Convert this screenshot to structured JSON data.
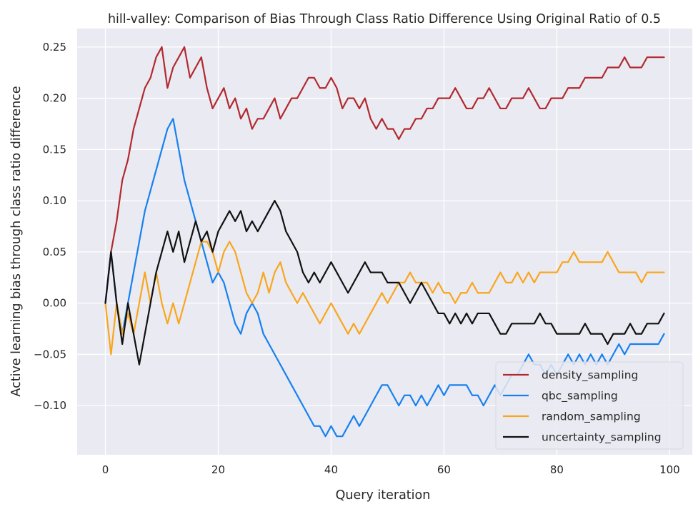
{
  "chart_data": {
    "type": "line",
    "title": "hill-valley: Comparison of Bias Through Class Ratio Difference Using Original Ratio of 0.5",
    "xlabel": "Query iteration",
    "ylabel": "Active learning bias through class ratio difference",
    "xlim": [
      -5,
      104
    ],
    "ylim": [
      -0.148,
      0.268
    ],
    "xticks": [
      0,
      20,
      40,
      60,
      80,
      100
    ],
    "yticks": [
      -0.1,
      -0.05,
      0.0,
      0.05,
      0.1,
      0.15,
      0.2,
      0.25
    ],
    "xtick_labels": [
      "0",
      "20",
      "40",
      "60",
      "80",
      "100"
    ],
    "ytick_labels": [
      "−0.10",
      "−0.05",
      "0.00",
      "0.05",
      "0.10",
      "0.15",
      "0.20",
      "0.25"
    ],
    "grid": true,
    "legend_position": "lower-right",
    "x": [
      0,
      1,
      2,
      3,
      4,
      5,
      6,
      7,
      8,
      9,
      10,
      11,
      12,
      13,
      14,
      15,
      16,
      17,
      18,
      19,
      20,
      21,
      22,
      23,
      24,
      25,
      26,
      27,
      28,
      29,
      30,
      31,
      32,
      33,
      34,
      35,
      36,
      37,
      38,
      39,
      40,
      41,
      42,
      43,
      44,
      45,
      46,
      47,
      48,
      49,
      50,
      51,
      52,
      53,
      54,
      55,
      56,
      57,
      58,
      59,
      60,
      61,
      62,
      63,
      64,
      65,
      66,
      67,
      68,
      69,
      70,
      71,
      72,
      73,
      74,
      75,
      76,
      77,
      78,
      79,
      80,
      81,
      82,
      83,
      84,
      85,
      86,
      87,
      88,
      89,
      90,
      91,
      92,
      93,
      94,
      95,
      96,
      97,
      98,
      99
    ],
    "series": [
      {
        "name": "density_sampling",
        "color": "#b2292e",
        "values": [
          0.0,
          0.05,
          0.08,
          0.12,
          0.14,
          0.17,
          0.19,
          0.21,
          0.22,
          0.24,
          0.25,
          0.21,
          0.23,
          0.24,
          0.25,
          0.22,
          0.23,
          0.24,
          0.21,
          0.19,
          0.2,
          0.21,
          0.19,
          0.2,
          0.18,
          0.19,
          0.17,
          0.18,
          0.18,
          0.19,
          0.2,
          0.18,
          0.19,
          0.2,
          0.2,
          0.21,
          0.22,
          0.22,
          0.21,
          0.21,
          0.22,
          0.21,
          0.19,
          0.2,
          0.2,
          0.19,
          0.2,
          0.18,
          0.17,
          0.18,
          0.17,
          0.17,
          0.16,
          0.17,
          0.17,
          0.18,
          0.18,
          0.19,
          0.19,
          0.2,
          0.2,
          0.2,
          0.21,
          0.2,
          0.19,
          0.19,
          0.2,
          0.2,
          0.21,
          0.2,
          0.19,
          0.19,
          0.2,
          0.2,
          0.2,
          0.21,
          0.2,
          0.19,
          0.19,
          0.2,
          0.2,
          0.2,
          0.21,
          0.21,
          0.21,
          0.22,
          0.22,
          0.22,
          0.22,
          0.23,
          0.23,
          0.23,
          0.24,
          0.23,
          0.23,
          0.23,
          0.24,
          0.24,
          0.24,
          0.24
        ]
      },
      {
        "name": "qbc_sampling",
        "color": "#1681f0",
        "values": [
          0.0,
          0.05,
          0.0,
          -0.03,
          0.0,
          0.03,
          0.06,
          0.09,
          0.11,
          0.13,
          0.15,
          0.17,
          0.18,
          0.15,
          0.12,
          0.1,
          0.08,
          0.06,
          0.04,
          0.02,
          0.03,
          0.02,
          0.0,
          -0.02,
          -0.03,
          -0.01,
          0.0,
          -0.01,
          -0.03,
          -0.04,
          -0.05,
          -0.06,
          -0.07,
          -0.08,
          -0.09,
          -0.1,
          -0.11,
          -0.12,
          -0.12,
          -0.13,
          -0.12,
          -0.13,
          -0.13,
          -0.12,
          -0.11,
          -0.12,
          -0.11,
          -0.1,
          -0.09,
          -0.08,
          -0.08,
          -0.09,
          -0.1,
          -0.09,
          -0.09,
          -0.1,
          -0.09,
          -0.1,
          -0.09,
          -0.08,
          -0.09,
          -0.08,
          -0.08,
          -0.08,
          -0.08,
          -0.09,
          -0.09,
          -0.1,
          -0.09,
          -0.08,
          -0.09,
          -0.08,
          -0.07,
          -0.07,
          -0.06,
          -0.05,
          -0.06,
          -0.06,
          -0.07,
          -0.06,
          -0.07,
          -0.06,
          -0.05,
          -0.06,
          -0.05,
          -0.06,
          -0.05,
          -0.06,
          -0.05,
          -0.06,
          -0.05,
          -0.04,
          -0.05,
          -0.04,
          -0.04,
          -0.04,
          -0.04,
          -0.04,
          -0.04,
          -0.03
        ]
      },
      {
        "name": "random_sampling",
        "color": "#f9a61c",
        "values": [
          0.0,
          -0.05,
          0.0,
          -0.03,
          -0.01,
          -0.03,
          0.0,
          0.03,
          0.0,
          0.03,
          0.0,
          -0.02,
          0.0,
          -0.02,
          0.0,
          0.02,
          0.04,
          0.06,
          0.06,
          0.05,
          0.03,
          0.05,
          0.06,
          0.05,
          0.03,
          0.01,
          0.0,
          0.01,
          0.03,
          0.01,
          0.03,
          0.04,
          0.02,
          0.01,
          0.0,
          0.01,
          0.0,
          -0.01,
          -0.02,
          -0.01,
          0.0,
          -0.01,
          -0.02,
          -0.03,
          -0.02,
          -0.03,
          -0.02,
          -0.01,
          0.0,
          0.01,
          0.0,
          0.01,
          0.02,
          0.02,
          0.03,
          0.02,
          0.02,
          0.02,
          0.01,
          0.02,
          0.01,
          0.01,
          0.0,
          0.01,
          0.01,
          0.02,
          0.01,
          0.01,
          0.01,
          0.02,
          0.03,
          0.02,
          0.02,
          0.03,
          0.02,
          0.03,
          0.02,
          0.03,
          0.03,
          0.03,
          0.03,
          0.04,
          0.04,
          0.05,
          0.04,
          0.04,
          0.04,
          0.04,
          0.04,
          0.05,
          0.04,
          0.03,
          0.03,
          0.03,
          0.03,
          0.02,
          0.03,
          0.03,
          0.03,
          0.03
        ]
      },
      {
        "name": "uncertainty_sampling",
        "color": "#111111",
        "values": [
          0.0,
          0.05,
          0.0,
          -0.04,
          0.0,
          -0.03,
          -0.06,
          -0.03,
          0.0,
          0.03,
          0.05,
          0.07,
          0.05,
          0.07,
          0.04,
          0.06,
          0.08,
          0.06,
          0.07,
          0.05,
          0.07,
          0.08,
          0.09,
          0.08,
          0.09,
          0.07,
          0.08,
          0.07,
          0.08,
          0.09,
          0.1,
          0.09,
          0.07,
          0.06,
          0.05,
          0.03,
          0.02,
          0.03,
          0.02,
          0.03,
          0.04,
          0.03,
          0.02,
          0.01,
          0.02,
          0.03,
          0.04,
          0.03,
          0.03,
          0.03,
          0.02,
          0.02,
          0.02,
          0.01,
          0.0,
          0.01,
          0.02,
          0.01,
          0.0,
          -0.01,
          -0.01,
          -0.02,
          -0.01,
          -0.02,
          -0.01,
          -0.02,
          -0.01,
          -0.01,
          -0.01,
          -0.02,
          -0.03,
          -0.03,
          -0.02,
          -0.02,
          -0.02,
          -0.02,
          -0.02,
          -0.01,
          -0.02,
          -0.02,
          -0.03,
          -0.03,
          -0.03,
          -0.03,
          -0.03,
          -0.02,
          -0.03,
          -0.03,
          -0.03,
          -0.04,
          -0.03,
          -0.03,
          -0.03,
          -0.02,
          -0.03,
          -0.03,
          -0.02,
          -0.02,
          -0.02,
          -0.01
        ]
      }
    ]
  }
}
